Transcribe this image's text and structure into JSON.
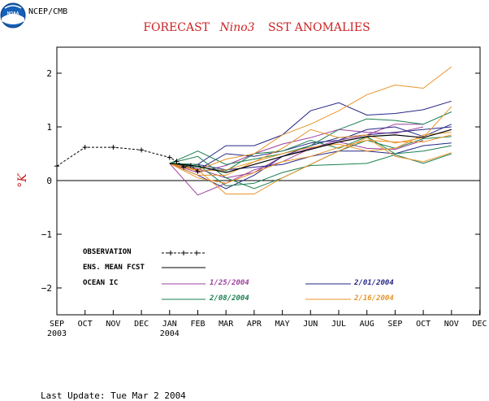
{
  "header": {
    "org": "NCEP/CMB",
    "logo_text": "NOAA"
  },
  "footer": {
    "last_update": "Last Update: Tue Mar 2 2004"
  },
  "colors": {
    "title": "#cc2222",
    "observation": "#000000",
    "ens_mean": "#000000",
    "ic_1_25": "#9c3f9c",
    "ic_2_01": "#262687",
    "ic_2_08": "#1a8050",
    "ic_2_16": "#e8952a"
  },
  "chart_data": {
    "type": "line",
    "title_parts": [
      "FORECAST",
      "Nino3",
      "SST ANOMALIES"
    ],
    "ylabel": "°K",
    "ylim": [
      -2.5,
      2.5
    ],
    "yticks": [
      2,
      1,
      0,
      -1,
      -2
    ],
    "ytick_labels": [
      "2",
      "1",
      "0",
      "−1",
      "−2"
    ],
    "zero_line": true,
    "categories": [
      "SEP",
      "OCT",
      "NOV",
      "DEC",
      "JAN",
      "FEB",
      "MAR",
      "APR",
      "MAY",
      "JUN",
      "JUL",
      "AUG",
      "SEP",
      "OCT",
      "NOV",
      "DEC"
    ],
    "year_labels": [
      {
        "index": 0,
        "text": "2003"
      },
      {
        "index": 4,
        "text": "2004"
      }
    ],
    "observation": {
      "values": [
        [
          0.0,
          0.27
        ],
        [
          1.0,
          0.62
        ],
        [
          2.0,
          0.62
        ],
        [
          3.0,
          0.57
        ],
        [
          4.0,
          0.43
        ],
        [
          4.25,
          0.36
        ],
        [
          4.5,
          0.25
        ],
        [
          4.75,
          0.28
        ],
        [
          5.0,
          0.17
        ]
      ]
    },
    "ens_mean": {
      "values": [
        [
          4.0,
          0.32
        ],
        [
          5.0,
          0.27
        ],
        [
          6.0,
          0.15
        ],
        [
          7.0,
          0.3
        ],
        [
          8.0,
          0.45
        ],
        [
          9.0,
          0.58
        ],
        [
          10.0,
          0.72
        ],
        [
          11.0,
          0.82
        ],
        [
          12.0,
          0.85
        ],
        [
          13.0,
          0.8
        ],
        [
          14.0,
          0.95
        ]
      ]
    },
    "legend": {
      "observation_label": "OBSERVATION",
      "ens_mean_label": "ENS. MEAN FCST",
      "ocean_ic_label": "OCEAN IC",
      "ic_labels": [
        "1/25/2004",
        "2/01/2004",
        "2/08/2004",
        "2/16/2004"
      ]
    },
    "ic_groups": [
      {
        "name": "1/25/2004",
        "members": [
          [
            0.32,
            -0.27,
            -0.05,
            0.2,
            0.35,
            0.6,
            0.75,
            0.85,
            1.05,
            1.05
          ],
          [
            0.32,
            0.15,
            0.28,
            0.5,
            0.68,
            0.8,
            0.95,
            0.9,
            0.88,
            1.0
          ],
          [
            0.32,
            0.22,
            0.05,
            0.15,
            0.45,
            0.6,
            0.72,
            0.6,
            0.58,
            0.75
          ]
        ]
      },
      {
        "name": "2/01/2004",
        "members": [
          [
            0.32,
            0.3,
            0.65,
            0.65,
            0.85,
            1.3,
            1.45,
            1.22,
            1.25,
            1.32,
            1.48
          ],
          [
            0.32,
            0.1,
            -0.15,
            0.1,
            0.45,
            0.65,
            0.8,
            0.85,
            0.9,
            0.95,
            1.0
          ],
          [
            0.32,
            0.2,
            0.5,
            0.45,
            0.55,
            0.7,
            0.75,
            0.95,
            1.0,
            0.82,
            1.05
          ],
          [
            0.32,
            0.3,
            0.2,
            0.25,
            0.3,
            0.45,
            0.55,
            0.55,
            0.5,
            0.65,
            0.7
          ]
        ]
      },
      {
        "name": "2/08/2004",
        "members": [
          [
            0.32,
            0.55,
            0.3,
            0.4,
            0.5,
            0.65,
            0.95,
            1.15,
            1.12,
            1.05,
            1.28
          ],
          [
            0.32,
            0.45,
            0.05,
            -0.15,
            0.05,
            0.3,
            0.55,
            0.75,
            0.6,
            0.78,
            0.82
          ],
          [
            0.32,
            0.3,
            -0.1,
            -0.05,
            0.15,
            0.28,
            0.3,
            0.32,
            0.48,
            0.32,
            0.5
          ],
          [
            0.32,
            0.25,
            0.18,
            0.5,
            0.55,
            0.75,
            0.6,
            0.82,
            0.5,
            0.55,
            0.65
          ]
        ]
      },
      {
        "name": "2/16/2004",
        "members": [
          [
            0.32,
            0.2,
            0.4,
            0.5,
            0.85,
            1.05,
            1.3,
            1.6,
            1.78,
            1.72,
            2.12
          ],
          [
            0.32,
            0.2,
            -0.25,
            -0.25,
            0.05,
            0.3,
            0.55,
            0.8,
            0.45,
            0.35,
            0.52
          ],
          [
            0.32,
            0.1,
            0.1,
            0.35,
            0.6,
            0.95,
            0.8,
            0.85,
            0.7,
            0.8,
            1.38
          ],
          [
            0.32,
            0.18,
            0.2,
            0.35,
            0.5,
            0.62,
            0.68,
            0.55,
            0.6,
            0.85,
            0.9
          ],
          [
            0.32,
            0.05,
            -0.05,
            0.15,
            0.35,
            0.45,
            0.62,
            0.75,
            0.72,
            0.72,
            0.85
          ]
        ]
      }
    ]
  }
}
